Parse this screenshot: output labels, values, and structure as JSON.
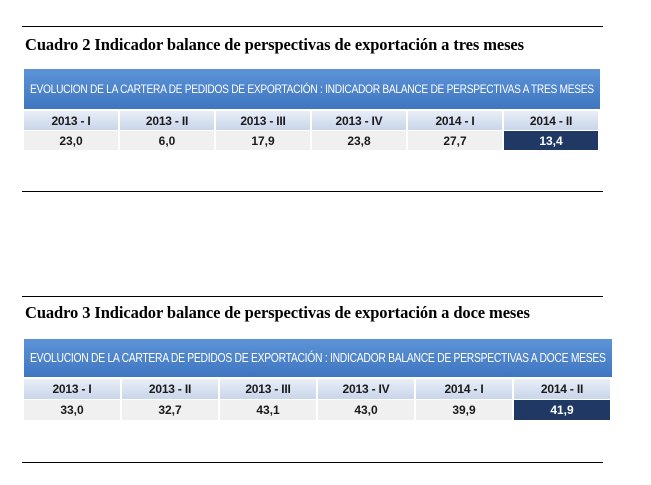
{
  "cuadro2": {
    "title": "Cuadro 2 Indicador balance de perspectivas de exportación a tres meses",
    "banner": "EVOLUCION DE LA CARTERA DE PEDIDOS DE EXPORTACIÓN : INDICADOR BALANCE DE PERSPECTIVAS A TRES MESES",
    "periods": [
      "2013 - I",
      "2013 - II",
      "2013 - III",
      "2013 - IV",
      "2014 - I",
      "2014 - II"
    ],
    "values": [
      "23,0",
      "6,0",
      "17,9",
      "23,8",
      "27,7",
      "13,4"
    ],
    "highlight_index": 5
  },
  "cuadro3": {
    "title": "Cuadro 3 Indicador balance de perspectivas de exportación a doce meses",
    "banner": "EVOLUCION DE LA CARTERA DE PEDIDOS DE EXPORTACIÓN : INDICADOR BALANCE DE PERSPECTIVAS A DOCE MESES",
    "periods": [
      "2013 - I",
      "2013 - II",
      "2013 - III",
      "2013 - IV",
      "2014 - I",
      "2014 - II"
    ],
    "values": [
      "33,0",
      "32,7",
      "43,1",
      "43,0",
      "39,9",
      "41,9"
    ],
    "highlight_index": 5
  },
  "colors": {
    "banner": "#4a82cc",
    "header_cell": "#d6e0f0",
    "value_cell": "#f0f0f0",
    "highlight_cell": "#1f3864"
  }
}
